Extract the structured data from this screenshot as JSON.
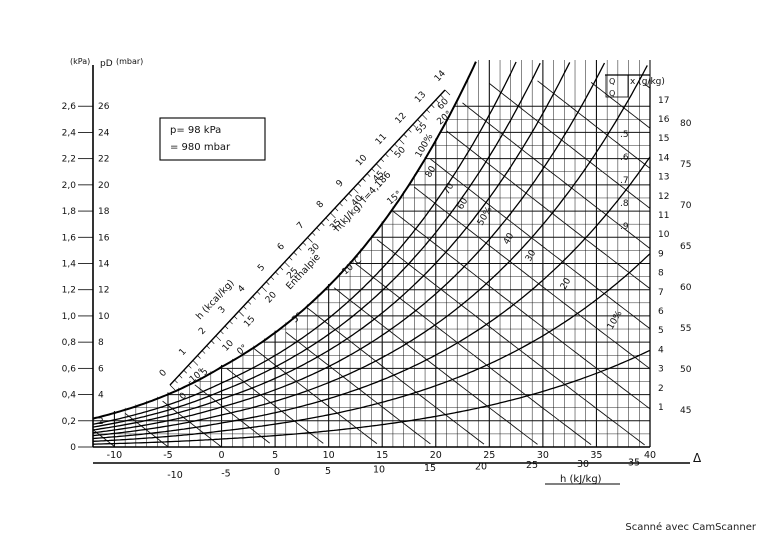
{
  "chart_data": {
    "type": "line",
    "title": "",
    "pressure_note": [
      "p=  98 kPa",
      "= 980 mbar"
    ],
    "y_axis": {
      "label_kpa": "(kPa)",
      "label_symbol": "pD",
      "label_mbar": "(mbar)",
      "kpa_ticks": [
        "0",
        "0,2",
        "0,4",
        "0,6",
        "0,8",
        "1,0",
        "1,2",
        "1,4",
        "1,6",
        "1,8",
        "2,0",
        "2,2",
        "2,4",
        "2,6"
      ],
      "mbar_ticks": [
        "2",
        "4",
        "6",
        "8",
        "10",
        "12",
        "14",
        "16",
        "18",
        "20",
        "22",
        "24",
        "26"
      ],
      "ylim_kpa": [
        0,
        2.8
      ]
    },
    "x_axis": {
      "temperature_ticks": [
        "-10",
        "-5",
        "0",
        "5",
        "10",
        "15",
        "20",
        "25",
        "30",
        "35",
        "40"
      ],
      "enthalpy_ticks": [
        "-10",
        "-5",
        "0",
        "5",
        "10",
        "15",
        "20",
        "25",
        "30",
        "35"
      ],
      "enthalpy_label": "h (kJ/kg)",
      "delta_label": "Δ"
    },
    "right_axis": {
      "x_label": "x (g/kg)",
      "x_ticks": [
        "1",
        "2",
        "3",
        "4",
        "5",
        "6",
        "7",
        "8",
        "9",
        "10",
        "11",
        "12",
        "13",
        "14",
        "15",
        "16",
        "17"
      ],
      "sensible_ratio_label_top": "Q",
      "sensible_ratio_label_bottom": "Q",
      "ratio_ticks": [
        ".5",
        ".6",
        ".7",
        ".8",
        ".9"
      ],
      "outer_ticks": [
        "45",
        "50",
        "55",
        "60",
        "65",
        "70",
        "75",
        "80"
      ]
    },
    "enthalpy_scale": {
      "label_kcal": "h (kcal/kg)",
      "kcal_ticks": [
        "0",
        "1",
        "2",
        "3",
        "4",
        "5",
        "6",
        "7",
        "8",
        "9",
        "10",
        "11",
        "12",
        "13",
        "14"
      ],
      "label_kj": "h(kJ/kg)  f=4,186",
      "kj_ticks": [
        "0",
        "5",
        "10",
        "15",
        "20",
        "25",
        "30",
        "35",
        "40",
        "45",
        "50",
        "55",
        "60"
      ],
      "label_word": "Enthalpie"
    },
    "relative_humidity": {
      "labels": [
        "100%",
        "80",
        "70",
        "60",
        "50%",
        "40",
        "30",
        "20",
        "10%"
      ],
      "values": [
        100,
        80,
        70,
        60,
        50,
        40,
        30,
        20,
        10
      ]
    },
    "isotherm_labels": [
      "-10°",
      "0°",
      "5°",
      "10°C",
      "15°",
      "20°"
    ],
    "series": [
      {
        "name": "100%",
        "rh": 100
      },
      {
        "name": "50%",
        "rh": 50
      },
      {
        "name": "10%",
        "rh": 10
      }
    ]
  },
  "footer": {
    "text": "Scanné avec CamScanner"
  }
}
